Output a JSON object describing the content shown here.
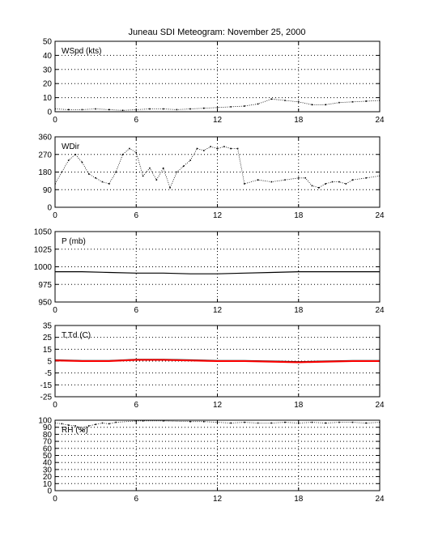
{
  "title": "Juneau SDI Meteogram:  November 25, 2000",
  "chart_data": [
    {
      "type": "scatter",
      "label": "WSpd (kts)",
      "xlim": [
        0,
        24
      ],
      "ylim": [
        0,
        50
      ],
      "xticks": [
        0,
        6,
        12,
        18,
        24
      ],
      "yticks": [
        0,
        10,
        20,
        30,
        40,
        50
      ],
      "grid": true,
      "series": [
        {
          "color": "#000000",
          "x": [
            0,
            1,
            2,
            3,
            4,
            5,
            6,
            7,
            8,
            9,
            10,
            11,
            12,
            13,
            14,
            15,
            16,
            17,
            18,
            19,
            20,
            21,
            22,
            23,
            24
          ],
          "y": [
            2,
            1.5,
            1.5,
            2,
            1.5,
            1,
            1.5,
            2,
            2,
            1.5,
            2,
            2.5,
            3,
            3.5,
            4,
            5.5,
            9,
            8,
            7,
            5,
            5,
            6.5,
            7,
            7.5,
            8
          ]
        }
      ]
    },
    {
      "type": "scatter",
      "label": "WDir",
      "xlim": [
        0,
        24
      ],
      "ylim": [
        0,
        360
      ],
      "xticks": [
        0,
        6,
        12,
        18,
        24
      ],
      "yticks": [
        0,
        90,
        180,
        270,
        360
      ],
      "grid": true,
      "series": [
        {
          "color": "#000000",
          "x": [
            0,
            0.5,
            1,
            1.5,
            2,
            2.5,
            3,
            3.5,
            4,
            4.5,
            5,
            5.5,
            6,
            6.5,
            7,
            7.5,
            8,
            8.5,
            9,
            9.5,
            10,
            10.5,
            11,
            11.5,
            12,
            12.5,
            13,
            13.5,
            14,
            15,
            16,
            17,
            18,
            18.5,
            19,
            19.5,
            20,
            20.5,
            21,
            21.5,
            22,
            23,
            24
          ],
          "y": [
            120,
            180,
            240,
            270,
            230,
            170,
            150,
            130,
            120,
            180,
            270,
            300,
            280,
            160,
            200,
            140,
            200,
            100,
            180,
            210,
            240,
            300,
            290,
            310,
            300,
            310,
            300,
            300,
            120,
            140,
            130,
            140,
            150,
            150,
            110,
            100,
            120,
            130,
            130,
            120,
            140,
            150,
            160
          ]
        }
      ]
    },
    {
      "type": "line",
      "label": "P (mb)",
      "xlim": [
        0,
        24
      ],
      "ylim": [
        950,
        1050
      ],
      "xticks": [
        0,
        6,
        12,
        18,
        24
      ],
      "yticks": [
        950,
        975,
        1000,
        1025,
        1050
      ],
      "grid": true,
      "series": [
        {
          "color": "#000000",
          "x": [
            0,
            2,
            4,
            6,
            8,
            10,
            12,
            14,
            16,
            18,
            20,
            22,
            24
          ],
          "y": [
            993,
            993,
            992,
            991,
            991,
            990,
            990,
            991,
            992,
            993,
            993,
            993,
            993
          ]
        }
      ]
    },
    {
      "type": "line",
      "label": "T,Td (C)",
      "xlim": [
        0,
        24
      ],
      "ylim": [
        -25,
        35
      ],
      "xticks": [
        0,
        6,
        12,
        18,
        24
      ],
      "yticks": [
        -25,
        -15,
        -5,
        5,
        15,
        25,
        35
      ],
      "grid": true,
      "series": [
        {
          "color": "#000000",
          "x": [
            0,
            2,
            4,
            6,
            8,
            10,
            12,
            14,
            16,
            18,
            20,
            22,
            24
          ],
          "y": [
            6,
            5.5,
            5.5,
            6.5,
            6.5,
            6,
            5.5,
            5.5,
            5,
            4.5,
            5,
            5.5,
            5.5
          ]
        },
        {
          "color": "#ff0000",
          "x": [
            0,
            2,
            4,
            6,
            8,
            10,
            12,
            14,
            16,
            18,
            20,
            22,
            24
          ],
          "y": [
            5.5,
            5,
            5,
            6,
            6,
            5.5,
            5,
            5,
            4.5,
            4,
            4.5,
            5,
            5
          ]
        }
      ]
    },
    {
      "type": "scatter",
      "label": "RH (%)",
      "xlim": [
        0,
        24
      ],
      "ylim": [
        0,
        100
      ],
      "xticks": [
        0,
        6,
        12,
        18,
        24
      ],
      "yticks": [
        0,
        10,
        20,
        30,
        40,
        50,
        60,
        70,
        80,
        90,
        100
      ],
      "grid": true,
      "series": [
        {
          "color": "#000000",
          "x": [
            0,
            0.5,
            1,
            1.5,
            2,
            2.5,
            3,
            3.5,
            4,
            4.5,
            6,
            6.5,
            8,
            10,
            11,
            12,
            13,
            14,
            15,
            16,
            17,
            18,
            19,
            20,
            21,
            22,
            23,
            24
          ],
          "y": [
            96,
            95,
            93,
            92,
            85,
            92,
            94,
            96,
            95,
            97,
            99,
            99,
            99,
            98,
            98,
            97,
            96,
            97,
            96,
            96,
            97,
            96,
            97,
            96,
            97,
            97,
            96,
            97
          ]
        }
      ]
    }
  ]
}
